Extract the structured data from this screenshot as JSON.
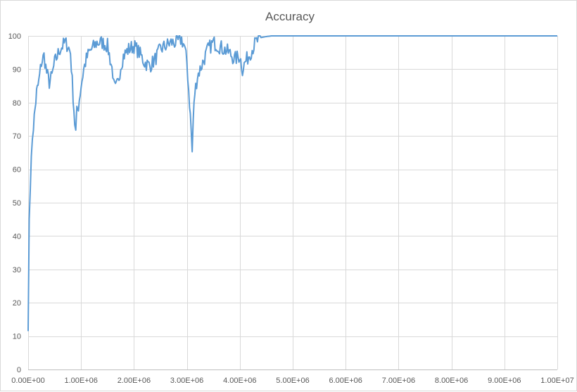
{
  "chart_data": {
    "type": "line",
    "title": "Accuracy",
    "xlabel": "",
    "ylabel": "",
    "xlim": [
      0,
      10000000
    ],
    "ylim": [
      0,
      100
    ],
    "x_ticks": [
      0,
      1000000,
      2000000,
      3000000,
      4000000,
      5000000,
      6000000,
      7000000,
      8000000,
      9000000,
      10000000
    ],
    "x_tick_labels": [
      "0.00E+00",
      "1.00E+06",
      "2.00E+06",
      "3.00E+06",
      "4.00E+06",
      "5.00E+06",
      "6.00E+06",
      "7.00E+06",
      "8.00E+06",
      "9.00E+06",
      "1.00E+07"
    ],
    "y_ticks": [
      0,
      10,
      20,
      30,
      40,
      50,
      60,
      70,
      80,
      90,
      100
    ],
    "y_tick_labels": [
      "0",
      "10",
      "20",
      "30",
      "40",
      "50",
      "60",
      "70",
      "80",
      "90",
      "100"
    ],
    "grid": true,
    "legend": "none",
    "series_color": "#5B9BD5",
    "series": [
      {
        "x": [
          0,
          20000,
          40000,
          60000,
          80000,
          100000,
          130000,
          160000,
          200000,
          250000,
          300000,
          350000,
          400000,
          450000,
          500000,
          550000,
          600000,
          650000,
          700000,
          750000,
          800000,
          850000,
          880000,
          900000,
          920000,
          950000,
          1000000,
          1050000,
          1100000,
          1150000,
          1200000,
          1250000,
          1300000,
          1400000,
          1500000,
          1550000,
          1600000,
          1620000,
          1650000,
          1700000,
          1750000,
          1800000,
          1900000,
          2000000,
          2100000,
          2200000,
          2300000,
          2400000,
          2500000,
          2600000,
          2700000,
          2800000,
          2900000,
          2950000,
          3000000,
          3050000,
          3080000,
          3100000,
          3120000,
          3150000,
          3200000,
          3300000,
          3400000,
          3500000,
          3600000,
          3700000,
          3800000,
          3900000,
          4000000,
          4050000,
          4100000,
          4200000,
          4300000,
          4400000,
          4500000,
          4600000,
          4800000,
          5000000,
          6000000,
          7000000,
          8000000,
          9000000,
          10000000
        ],
        "y": [
          11.5,
          45,
          56,
          62,
          70,
          73,
          78,
          83,
          86,
          92,
          94,
          89,
          86,
          88,
          92,
          94,
          96,
          97,
          98,
          97,
          95,
          82,
          74,
          71,
          77,
          79,
          85,
          90,
          93,
          95,
          96,
          97,
          98,
          98,
          97,
          93,
          89,
          85,
          84,
          86,
          91,
          94,
          96,
          97,
          95,
          92,
          91,
          93,
          96,
          97,
          98,
          98,
          99,
          97,
          92,
          80,
          72,
          65,
          75,
          83,
          88,
          92,
          96,
          98,
          97,
          96,
          95,
          93,
          94,
          90,
          92,
          95,
          98,
          99.5,
          99.8,
          100,
          100,
          100,
          100,
          100,
          100,
          100,
          100
        ]
      }
    ]
  }
}
